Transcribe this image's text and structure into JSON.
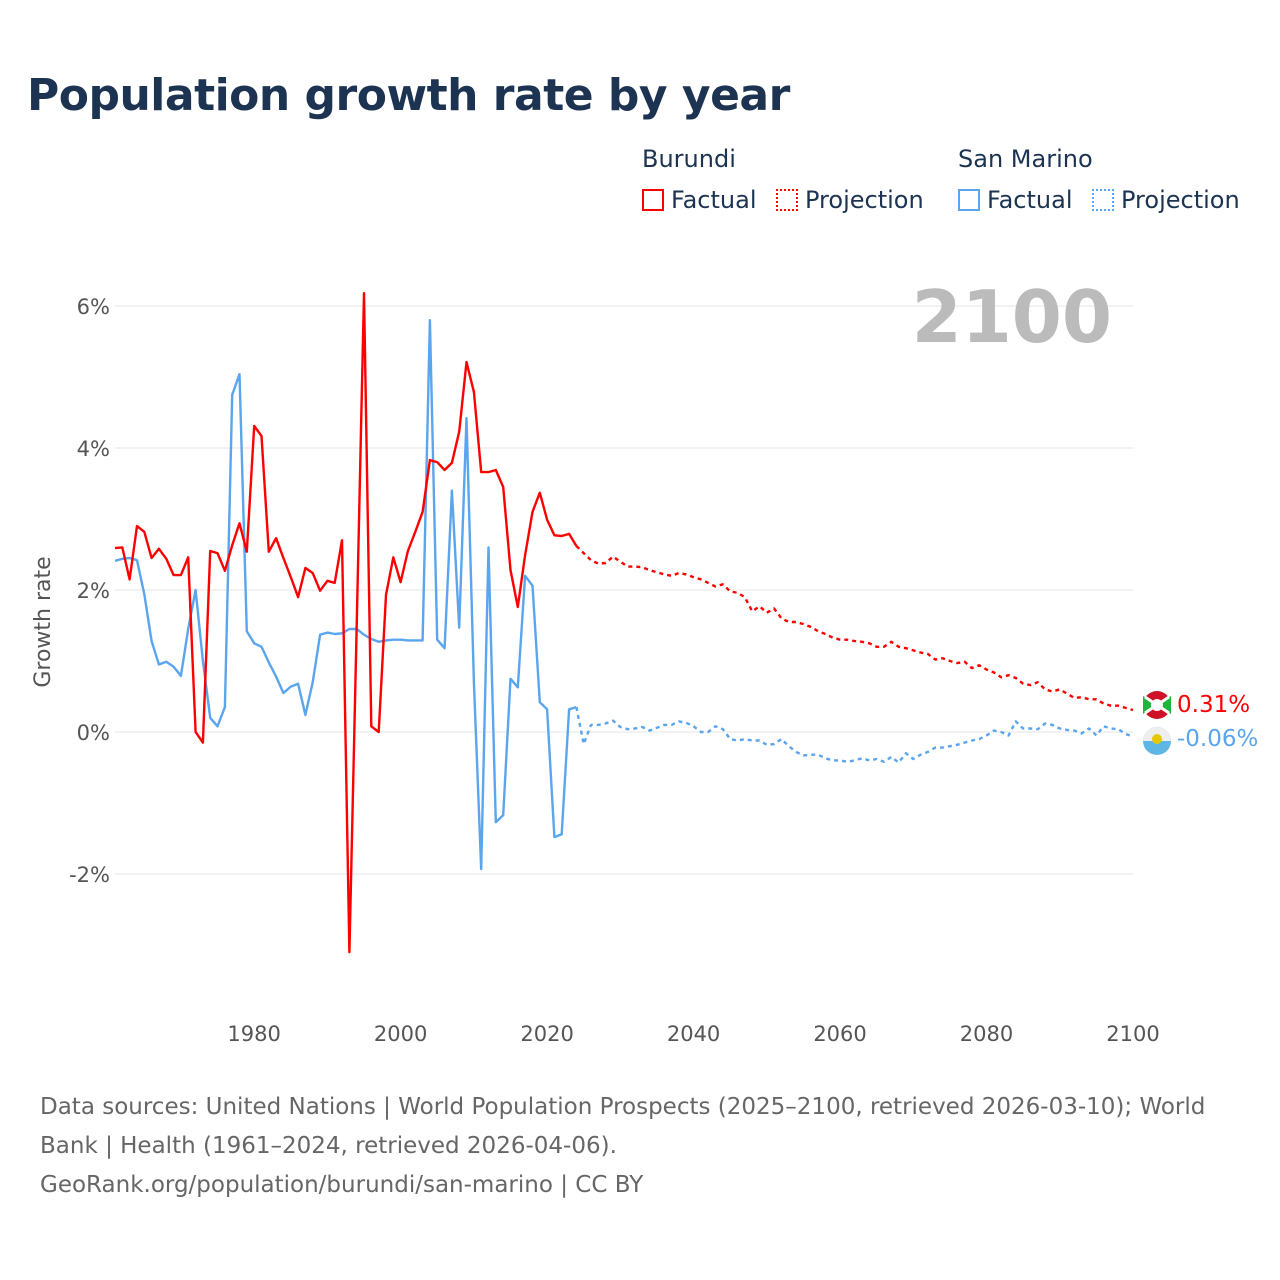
{
  "title": "Population growth rate by year",
  "legend": {
    "burundi": {
      "name": "Burundi",
      "factual": "Factual",
      "projection": "Projection"
    },
    "san_marino": {
      "name": "San Marino",
      "factual": "Factual",
      "projection": "Projection"
    }
  },
  "year_label": "2100",
  "footer": {
    "sources": "Data sources: United Nations | World Population Prospects (2025–2100, retrieved 2026-03-10); World Bank | Health (1961–2024, retrieved 2026-04-06).",
    "credit": "GeoRank.org/population/burundi/san-marino | CC BY"
  },
  "chart_data": {
    "type": "line",
    "title": "Population growth rate by year",
    "xlabel": "",
    "ylabel": "Growth rate",
    "xlim": [
      1961,
      2100
    ],
    "ylim": [
      -3.5,
      6.5
    ],
    "x_ticks": [
      1980,
      2000,
      2020,
      2040,
      2060,
      2080,
      2100
    ],
    "x_tick_labels": [
      "1980",
      "2000",
      "2020",
      "2040",
      "2060",
      "2080",
      "2100"
    ],
    "y_ticks": [
      6,
      4,
      2,
      0,
      -2
    ],
    "y_tick_labels": [
      "6%",
      "4%",
      "2%",
      "0%",
      "-2%"
    ],
    "grid": true,
    "legend_position": "top-right",
    "colors": {
      "burundi": "#ff0000",
      "san_marino": "#5aa5ee"
    },
    "end_labels": {
      "burundi": "0.31%",
      "san_marino": "-0.06%"
    },
    "series": [
      {
        "name": "Burundi Factual",
        "start_year": 1961,
        "values": [
          2.59,
          2.6,
          2.15,
          2.9,
          2.82,
          2.45,
          2.58,
          2.44,
          2.21,
          2.21,
          2.46,
          0.0,
          -0.15,
          2.55,
          2.52,
          2.27,
          2.63,
          2.94,
          2.54,
          4.31,
          4.17,
          2.54,
          2.73,
          2.45,
          2.18,
          1.9,
          2.31,
          2.24,
          1.99,
          2.13,
          2.1,
          2.7,
          -3.1,
          1.5,
          6.18,
          0.08,
          0.0,
          1.93,
          2.46,
          2.11,
          2.55,
          2.82,
          3.1,
          3.83,
          3.8,
          3.69,
          3.79,
          4.23,
          5.21,
          4.79,
          3.66,
          3.66,
          3.69,
          3.45,
          2.28,
          1.76,
          2.49,
          3.1,
          3.37,
          2.99,
          2.77,
          2.76,
          2.79,
          2.62
        ]
      },
      {
        "name": "Burundi Projection",
        "start_year": 2024,
        "values": [
          2.62,
          2.52,
          2.42,
          2.37,
          2.38,
          2.47,
          2.4,
          2.33,
          2.33,
          2.32,
          2.28,
          2.25,
          2.22,
          2.2,
          2.24,
          2.22,
          2.18,
          2.15,
          2.1,
          2.05,
          2.08,
          1.98,
          1.96,
          1.9,
          1.7,
          1.77,
          1.68,
          1.74,
          1.6,
          1.55,
          1.55,
          1.52,
          1.48,
          1.42,
          1.38,
          1.33,
          1.3,
          1.3,
          1.28,
          1.27,
          1.25,
          1.2,
          1.2,
          1.27,
          1.2,
          1.18,
          1.15,
          1.12,
          1.1,
          1.02,
          1.04,
          1.0,
          0.97,
          0.99,
          0.9,
          0.94,
          0.88,
          0.84,
          0.77,
          0.8,
          0.76,
          0.68,
          0.66,
          0.7,
          0.6,
          0.57,
          0.6,
          0.54,
          0.48,
          0.49,
          0.46,
          0.46,
          0.4,
          0.37,
          0.37,
          0.34,
          0.31
        ]
      },
      {
        "name": "San Marino Factual",
        "start_year": 1961,
        "values": [
          2.41,
          2.44,
          2.45,
          2.42,
          1.94,
          1.28,
          0.95,
          0.99,
          0.92,
          0.79,
          1.45,
          2.0,
          1.0,
          0.2,
          0.08,
          0.35,
          4.75,
          5.04,
          1.42,
          1.25,
          1.2,
          0.98,
          0.78,
          0.55,
          0.64,
          0.68,
          0.24,
          0.7,
          1.37,
          1.4,
          1.38,
          1.39,
          1.45,
          1.45,
          1.37,
          1.31,
          1.27,
          1.29,
          1.3,
          1.3,
          1.29,
          1.29,
          1.29,
          5.8,
          1.3,
          1.18,
          3.4,
          1.47,
          4.42,
          0.7,
          -1.93,
          2.6,
          -1.27,
          -1.17,
          0.75,
          0.63,
          2.2,
          2.06,
          0.42,
          0.32,
          -1.48,
          -1.44,
          0.32,
          0.35
        ]
      },
      {
        "name": "San Marino Projection",
        "start_year": 2024,
        "values": [
          0.35,
          -0.17,
          0.1,
          0.1,
          0.12,
          0.16,
          0.07,
          0.04,
          0.05,
          0.07,
          0.02,
          0.06,
          0.1,
          0.1,
          0.15,
          0.13,
          0.08,
          0.0,
          0.0,
          0.08,
          0.04,
          -0.1,
          -0.12,
          -0.1,
          -0.12,
          -0.12,
          -0.18,
          -0.17,
          -0.1,
          -0.2,
          -0.28,
          -0.33,
          -0.32,
          -0.32,
          -0.37,
          -0.4,
          -0.4,
          -0.42,
          -0.4,
          -0.37,
          -0.4,
          -0.38,
          -0.42,
          -0.35,
          -0.43,
          -0.3,
          -0.38,
          -0.32,
          -0.28,
          -0.22,
          -0.22,
          -0.2,
          -0.18,
          -0.15,
          -0.12,
          -0.1,
          -0.05,
          0.02,
          0.0,
          -0.05,
          0.15,
          0.05,
          0.05,
          0.04,
          0.12,
          0.1,
          0.05,
          0.03,
          0.02,
          -0.02,
          0.05,
          -0.05,
          0.08,
          0.05,
          0.04,
          -0.03,
          -0.06
        ]
      }
    ]
  }
}
